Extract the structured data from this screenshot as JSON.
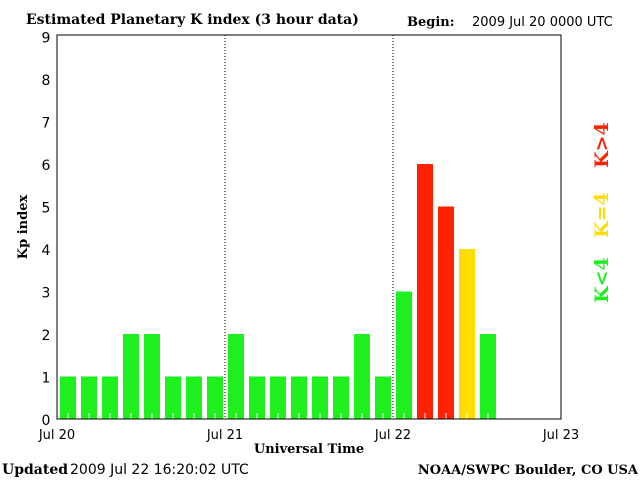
{
  "chart_data": {
    "type": "bar",
    "title": "Estimated Planetary K index (3 hour data)",
    "begin_label": "Begin:",
    "begin_value": "2009 Jul 20 0000 UTC",
    "xlabel": "Universal Time",
    "ylabel": "Kp index",
    "ylim": [
      0,
      9
    ],
    "yticks": [
      "0",
      "1",
      "2",
      "3",
      "4",
      "5",
      "6",
      "7",
      "8",
      "9"
    ],
    "xticks": [
      "Jul 20",
      "Jul 21",
      "Jul 22",
      "Jul 23"
    ],
    "interval_hours": 3,
    "values": [
      1,
      1,
      1,
      2,
      2,
      1,
      1,
      1,
      2,
      1,
      1,
      1,
      1,
      1,
      2,
      1,
      3,
      6,
      5,
      4,
      2
    ],
    "colors": {
      "below4": "#1ef01e",
      "equal4": "#ffdd00",
      "above4": "#ff2200"
    },
    "legend": [
      {
        "label": "K<4",
        "color": "#1ef01e"
      },
      {
        "label": "K=4",
        "color": "#ffdd00"
      },
      {
        "label": "K>4",
        "color": "#ff2200"
      }
    ],
    "legend_placement": "right",
    "day_separators": "dotted"
  },
  "footer": {
    "updated_label": "Updated",
    "updated_value": "2009 Jul 22 16:20:02 UTC",
    "credit": "NOAA/SWPC Boulder, CO USA"
  }
}
